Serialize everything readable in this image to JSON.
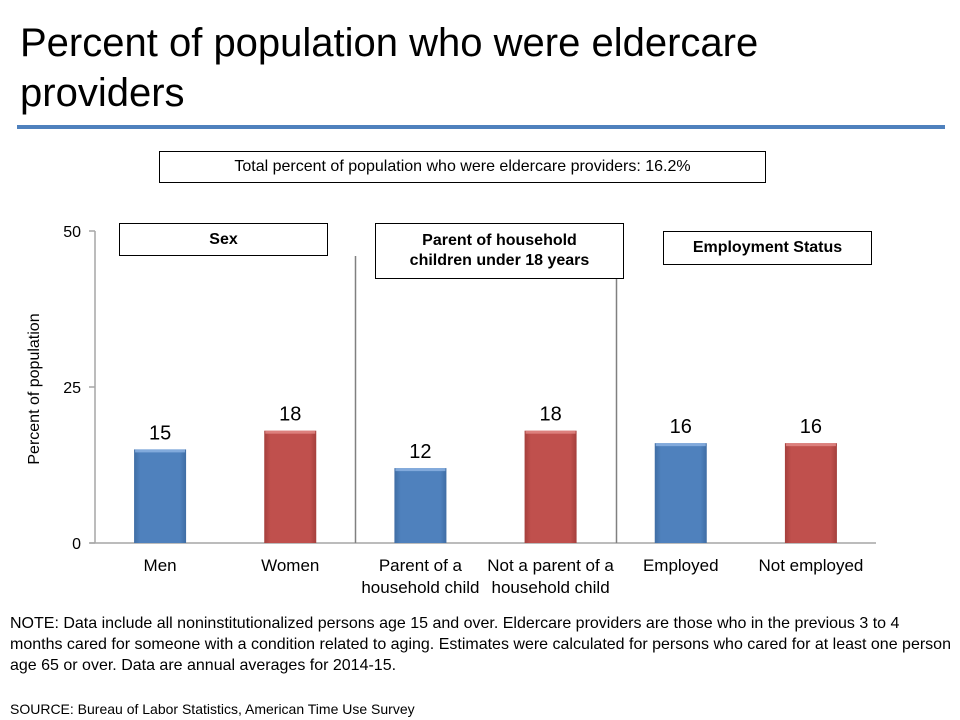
{
  "title": "Percent of population who were eldercare providers",
  "total_label": "Total percent of population who were eldercare providers: 16.2%",
  "colors": {
    "blue": "#4F81BD",
    "red": "#C0504D",
    "rule": "#4F81BD"
  },
  "chart_data": {
    "type": "bar",
    "title": "Percent of population who were eldercare providers",
    "xlabel": "",
    "ylabel": "Percent of population",
    "ylim": [
      0,
      50
    ],
    "yticks": [
      0,
      25,
      50
    ],
    "grid": false,
    "categories": [
      [
        "Men"
      ],
      [
        "Women"
      ],
      [
        "Parent of a",
        "household child"
      ],
      [
        "Not a parent of a",
        "household child"
      ],
      [
        "Employed"
      ],
      [
        "Not employed"
      ]
    ],
    "values": [
      15,
      18,
      12,
      18,
      16,
      16
    ],
    "bar_colors": [
      "blue",
      "red",
      "blue",
      "red",
      "blue",
      "red"
    ],
    "groups": [
      {
        "label": "Sex",
        "categories": [
          0,
          1
        ]
      },
      {
        "label": "Parent of household children under 18 years",
        "categories": [
          2,
          3
        ]
      },
      {
        "label": "Employment Status",
        "categories": [
          4,
          5
        ]
      }
    ]
  },
  "group_labels": {
    "sex": "Sex",
    "parent_line1": "Parent of household",
    "parent_line2": "children under 18 years",
    "employment": "Employment Status"
  },
  "note": "NOTE:  Data include all noninstitutionalized persons age 15 and over.   Eldercare providers are those who in the previous 3 to 4 months cared for someone with a condition related to aging. Estimates were calculated for persons who cared for at least one person age 65 or over.  Data are annual averages for 2014-15.",
  "source": "SOURCE: Bureau of Labor Statistics, American Time Use Survey"
}
